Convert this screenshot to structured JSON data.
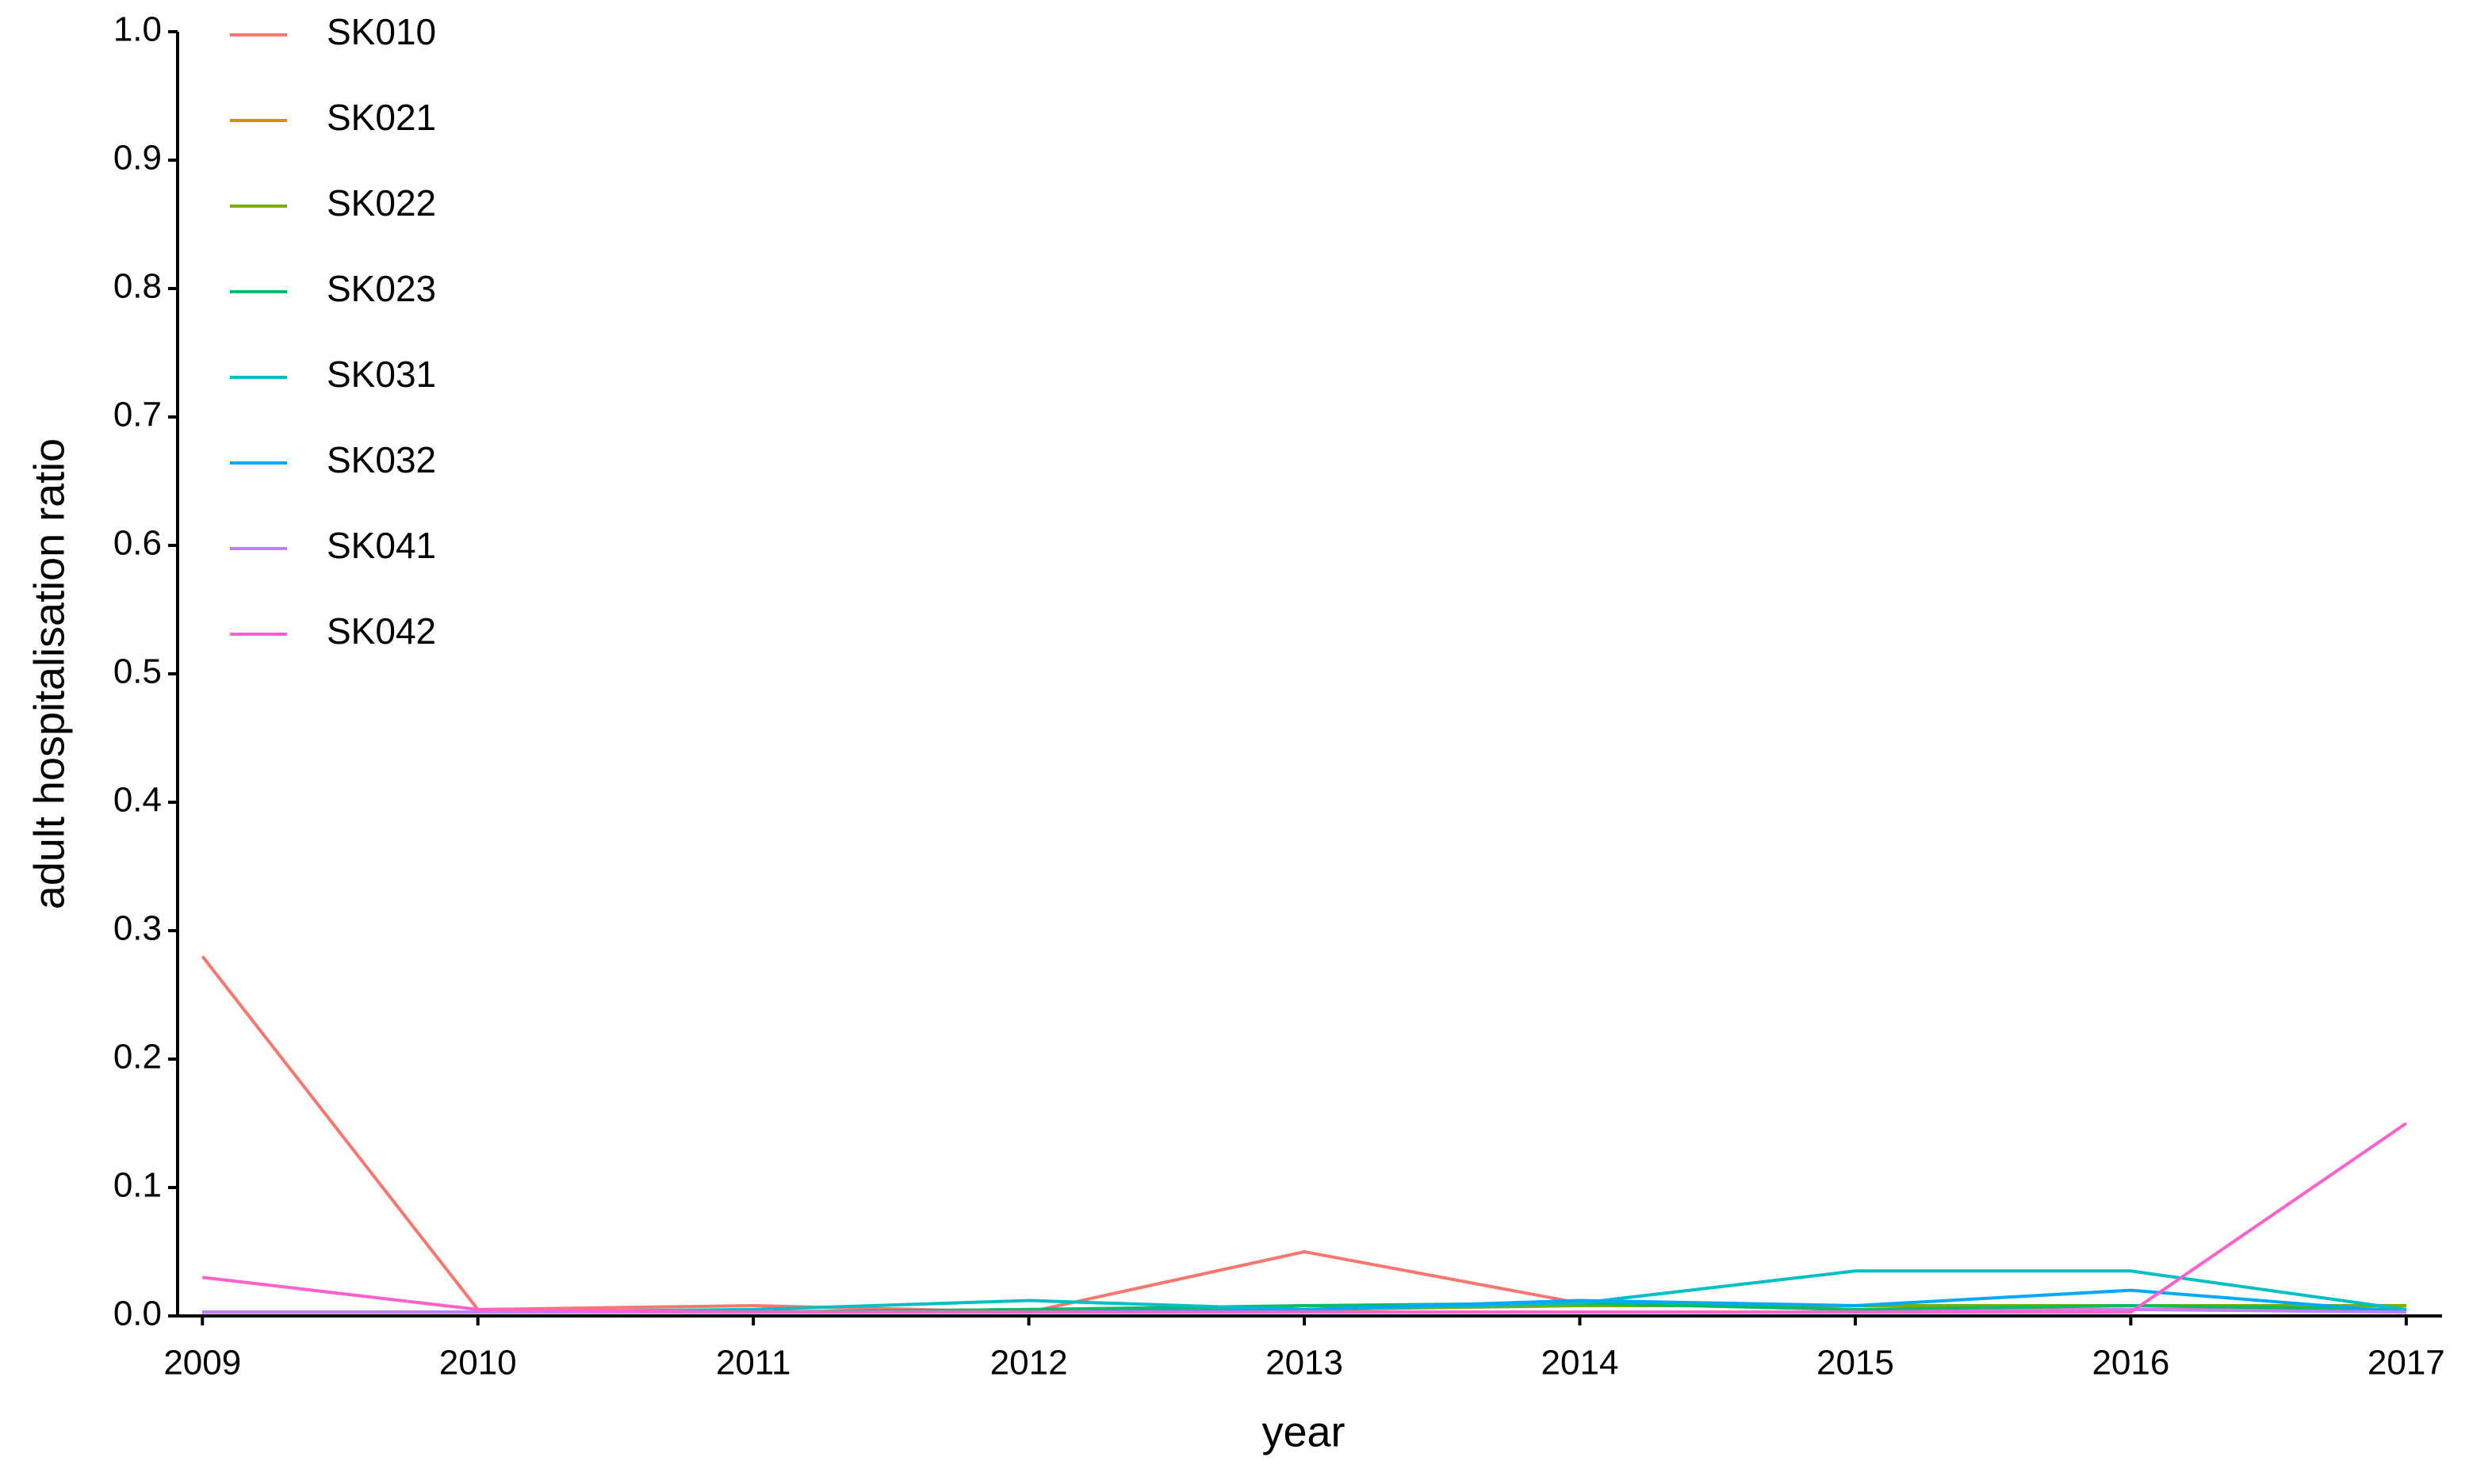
{
  "chart_data": {
    "type": "line",
    "x_label": "year",
    "y_label": "adult hospitalisation ratio",
    "x": [
      2009,
      2010,
      2011,
      2012,
      2013,
      2014,
      2015,
      2016,
      2017
    ],
    "series": [
      {
        "name": "SK010",
        "color": "#F8766D",
        "values": [
          0.28,
          0.005,
          0.008,
          0.003,
          0.05,
          0.01,
          0.005,
          0.005,
          0.005
        ]
      },
      {
        "name": "SK021",
        "color": "#CD9600",
        "values": [
          0.003,
          0.003,
          0.003,
          0.003,
          0.008,
          0.008,
          0.008,
          0.008,
          0.008
        ]
      },
      {
        "name": "SK022",
        "color": "#7CAE00",
        "values": [
          0.003,
          0.003,
          0.003,
          0.005,
          0.005,
          0.008,
          0.008,
          0.008,
          0.008
        ]
      },
      {
        "name": "SK023",
        "color": "#00BE67",
        "values": [
          0.003,
          0.003,
          0.003,
          0.005,
          0.008,
          0.01,
          0.005,
          0.008,
          0.005
        ]
      },
      {
        "name": "SK031",
        "color": "#00BFC4",
        "values": [
          0.003,
          0.003,
          0.005,
          0.012,
          0.005,
          0.01,
          0.035,
          0.035,
          0.005
        ]
      },
      {
        "name": "SK032",
        "color": "#00A9FF",
        "values": [
          0.003,
          0.003,
          0.003,
          0.003,
          0.005,
          0.012,
          0.008,
          0.02,
          0.003
        ]
      },
      {
        "name": "SK041",
        "color": "#C77CFF",
        "values": [
          0.003,
          0.003,
          0.003,
          0.003,
          0.003,
          0.003,
          0.003,
          0.005,
          0.003
        ]
      },
      {
        "name": "SK042",
        "color": "#FF61CC",
        "values": [
          0.03,
          0.005,
          0.003,
          0.003,
          0.003,
          0.003,
          0.003,
          0.003,
          0.15
        ]
      }
    ],
    "xlim": [
      2008.91,
      2017.13
    ],
    "xticks": [
      2009,
      2010,
      2011,
      2012,
      2013,
      2014,
      2015,
      2016,
      2017
    ],
    "ylim": [
      0,
      1
    ],
    "yticks": [
      {
        "value": 0,
        "label": "0.0"
      },
      0.1,
      0.2,
      0.3,
      0.4,
      0.5,
      0.6,
      0.7,
      0.8,
      0.9,
      {
        "value": 1,
        "label": "1.0"
      }
    ],
    "grid": false,
    "legend": "top-left"
  }
}
